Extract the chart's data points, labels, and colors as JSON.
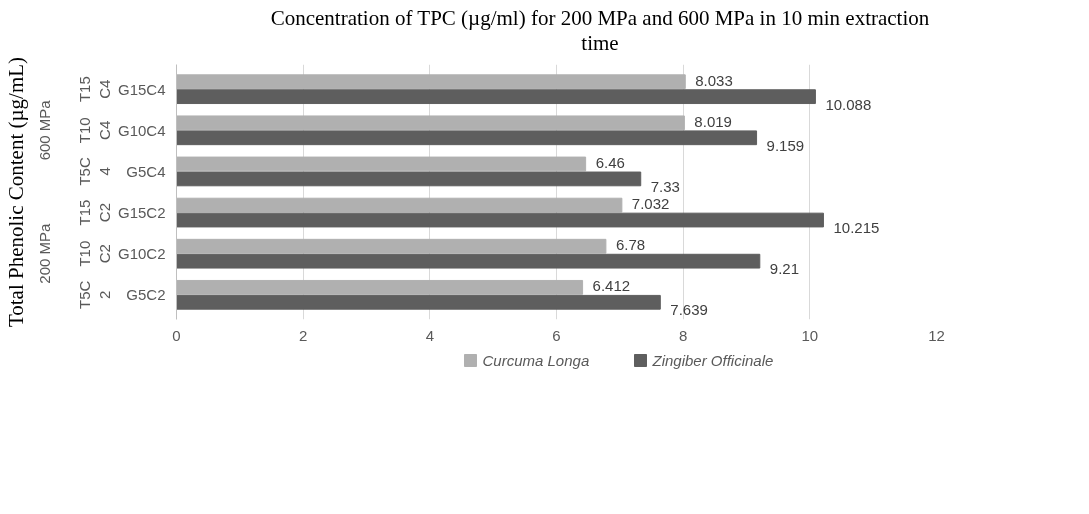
{
  "chart_data": {
    "type": "bar",
    "orientation": "horizontal",
    "title": "Concentration of TPC (µg/ml) for 200 MPa and 600 MPa in 10 min extraction time",
    "ylabel": "Total Phenolic Content (µg/mL)",
    "categories": [
      "G15C4",
      "G10C4",
      "G5C4",
      "G15C2",
      "G10C2",
      "G5C2"
    ],
    "series": [
      {
        "name": "Curcuma Longa",
        "color": "#b0b0b0",
        "values": [
          8.033,
          8.019,
          6.46,
          7.032,
          6.78,
          6.412
        ]
      },
      {
        "name": "Zingiber Officinale",
        "color": "#5e5e5e",
        "values": [
          10.088,
          9.159,
          7.33,
          10.215,
          9.21,
          7.639
        ]
      }
    ],
    "annotations": [
      "T15\nC4",
      "T10\nC4",
      "T5C\n4",
      "T15\nC2",
      "T10\nC2",
      "T5C\n2",
      "600 MPa",
      "200 MPa"
    ],
    "xlim": [
      0,
      12
    ],
    "xticks": [
      0,
      2,
      4,
      6,
      8,
      10,
      12
    ],
    "grid": "x",
    "legend": "bottom",
    "data_labels": true
  }
}
